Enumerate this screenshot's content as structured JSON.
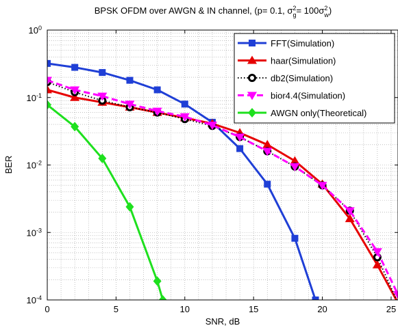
{
  "chart_data": {
    "type": "line",
    "title": "BPSK OFDM over AWGN & IN channel, (p= 0.1, σ²g= 100σ²w)",
    "title_parts": {
      "prefix": "BPSK OFDM over AWGN & IN channel, (p= 0.1, σ",
      "sup1": "2",
      "sub1": "g",
      "mid": "= 100σ",
      "sup2": "2",
      "sub2": "w",
      "suffix": ")"
    },
    "xlabel": "SNR, dB",
    "ylabel": "BER",
    "xlim": [
      0,
      25.5
    ],
    "ylim": [
      0.0001,
      1
    ],
    "yscale": "log",
    "grid": true,
    "legend_position": "top-right",
    "x_ticks": [
      {
        "value": 0,
        "label": "0"
      },
      {
        "value": 5,
        "label": "5"
      },
      {
        "value": 10,
        "label": "10"
      },
      {
        "value": 15,
        "label": "15"
      },
      {
        "value": 20,
        "label": "20"
      },
      {
        "value": 25,
        "label": "25"
      }
    ],
    "y_ticks": [
      {
        "value": 1,
        "base": "10",
        "exp": "0"
      },
      {
        "value": 0.1,
        "base": "10",
        "exp": "-1"
      },
      {
        "value": 0.01,
        "base": "10",
        "exp": "-2"
      },
      {
        "value": 0.001,
        "base": "10",
        "exp": "-3"
      },
      {
        "value": 0.0001,
        "base": "10",
        "exp": "-4"
      }
    ],
    "series": [
      {
        "name": "FFT(Simulation)",
        "color": "#1f3fd6",
        "marker": "square",
        "dash": "solid",
        "x": [
          0,
          2,
          4,
          6,
          8,
          10,
          12,
          14,
          16,
          18,
          19.5
        ],
        "y": [
          0.32,
          0.28,
          0.235,
          0.18,
          0.13,
          0.08,
          0.043,
          0.0175,
          0.0052,
          0.00082,
          0.0001
        ]
      },
      {
        "name": "haar(Simulation)",
        "color": "#e60000",
        "marker": "triangle-up",
        "dash": "solid",
        "x": [
          0,
          2,
          4,
          6,
          8,
          10,
          12,
          14,
          16,
          18,
          20,
          22,
          24,
          25.5
        ],
        "y": [
          0.13,
          0.1,
          0.085,
          0.072,
          0.06,
          0.05,
          0.041,
          0.03,
          0.02,
          0.0115,
          0.0052,
          0.0016,
          0.00033,
          9e-05
        ]
      },
      {
        "name": "db2(Simulation)",
        "color": "#000000",
        "marker": "circle",
        "dash": "dotted",
        "x": [
          0,
          2,
          4,
          6,
          8,
          10,
          12,
          14,
          16,
          18,
          20,
          22,
          24,
          25.5
        ],
        "y": [
          0.17,
          0.12,
          0.09,
          0.072,
          0.06,
          0.048,
          0.038,
          0.026,
          0.016,
          0.0095,
          0.005,
          0.0021,
          0.00043,
          9e-05
        ]
      },
      {
        "name": "bior4.4(Simulation)",
        "color": "#ff00ff",
        "marker": "triangle-down",
        "dash": "dashed",
        "x": [
          0,
          2,
          4,
          6,
          8,
          10,
          12,
          14,
          16,
          18,
          20,
          22,
          24,
          25.5
        ],
        "y": [
          0.18,
          0.13,
          0.105,
          0.08,
          0.063,
          0.052,
          0.039,
          0.026,
          0.016,
          0.0095,
          0.005,
          0.0021,
          0.00052,
          0.00012
        ]
      },
      {
        "name": "AWGN only(Theoretical)",
        "color": "#1ee01e",
        "marker": "diamond",
        "dash": "solid",
        "x": [
          0,
          2,
          4,
          6,
          8,
          8.4
        ],
        "y": [
          0.078,
          0.037,
          0.0125,
          0.0024,
          0.00019,
          0.0001
        ]
      }
    ]
  }
}
